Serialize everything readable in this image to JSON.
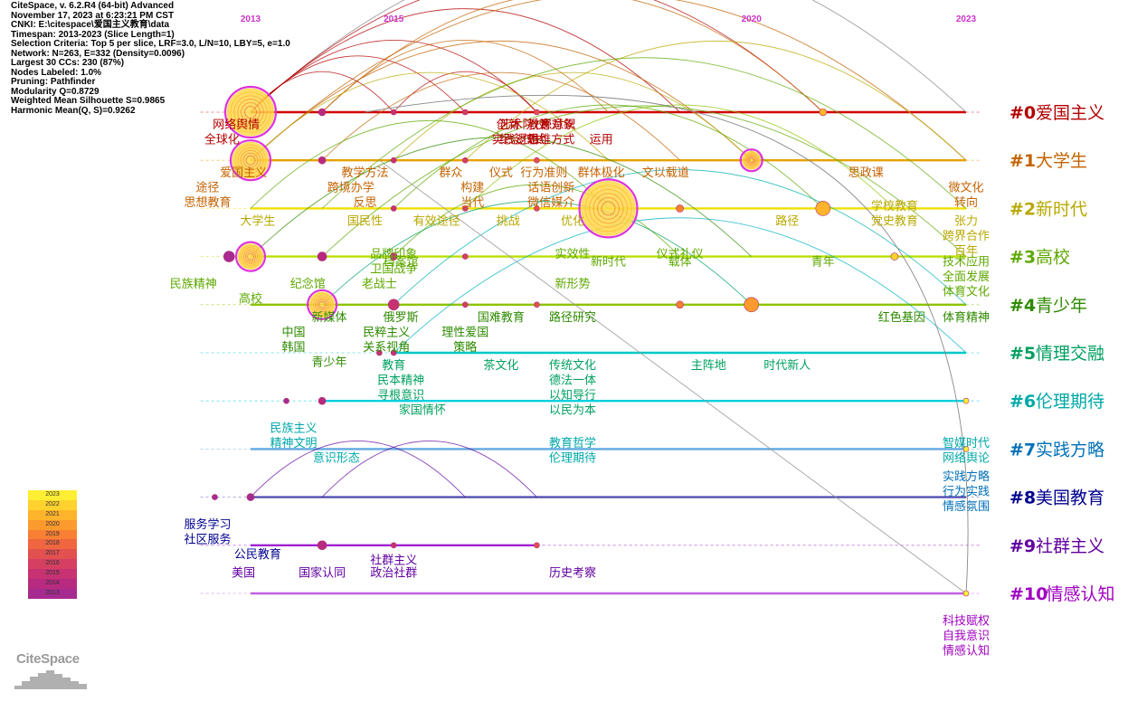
{
  "meta": {
    "lines": [
      "CiteSpace, v. 6.2.R4 (64-bit) Advanced",
      "November 17, 2023 at 6:23:21 PM CST",
      "CNKI: E:\\citespace\\爱国主义教育\\data",
      "Timespan: 2013-2023 (Slice Length=1)",
      "Selection Criteria: Top 5 per slice, LRF=3.0, L/N=10, LBY=5, e=1.0",
      "Network: N=263, E=332 (Density=0.0096)",
      "Largest 30 CCs: 230 (87%)",
      "Nodes Labeled: 1.0%",
      "Pruning: Pathfinder",
      "Modularity Q=0.8729",
      "Weighted Mean Silhouette S=0.9865",
      "Harmonic Mean(Q, S)=0.9262"
    ]
  },
  "timeline": {
    "years": [
      {
        "label": "2013",
        "year": 2013
      },
      {
        "label": "2015",
        "year": 2015
      },
      {
        "label": "2020",
        "year": 2020
      },
      {
        "label": "2023",
        "year": 2023
      }
    ],
    "clusters": [
      {
        "id": "#0",
        "name": "爱国主义",
        "color": "#b30000",
        "line_color": "#d00000",
        "start": 2013,
        "end": 2023,
        "nodes": [
          {
            "year": 2013,
            "size": 26
          },
          {
            "year": 2014,
            "size": 4
          },
          {
            "year": 2015,
            "size": 3
          },
          {
            "year": 2016,
            "size": 3
          },
          {
            "year": 2017,
            "size": 3
          },
          {
            "year": 2021,
            "size": 4
          }
        ],
        "keywords": [
          {
            "text": "网络舆情",
            "year": 2012.8,
            "row": 0
          },
          {
            "text": "全球化",
            "year": 2012.6,
            "row": 1
          },
          {
            "text": "创新",
            "year": 2016.6,
            "row": 0
          },
          {
            "text": "患意识",
            "year": 2017.3,
            "row": 0
          },
          {
            "text": "实践逻辑",
            "year": 2016.7,
            "row": 1
          },
          {
            "text": "运用",
            "year": 2017.9,
            "row": 1
          },
          {
            "text": "艺术院校",
            "year": 2016.8,
            "row": 0
          },
          {
            "text": "纪念仪式",
            "year": 2016.8,
            "row": 1
          },
          {
            "text": "教育对象",
            "year": 2017.2,
            "row": 0
          },
          {
            "text": "思维方式",
            "year": 2017.2,
            "row": 1
          }
        ]
      },
      {
        "id": "#1",
        "name": "大学生",
        "color": "#c46200",
        "line_color": "#e6a200",
        "start": 2013,
        "end": 2023,
        "nodes": [
          {
            "year": 2013,
            "size": 20
          },
          {
            "year": 2014,
            "size": 4
          },
          {
            "year": 2015,
            "size": 3
          },
          {
            "year": 2016,
            "size": 3
          },
          {
            "year": 2017,
            "size": 3
          },
          {
            "year": 2020,
            "size": 10
          }
        ],
        "keywords": [
          {
            "text": "爱国主义",
            "year": 2012.9,
            "row": 0
          },
          {
            "text": "教学方法",
            "year": 2014.6,
            "row": 0
          },
          {
            "text": "群众",
            "year": 2015.8,
            "row": 0
          },
          {
            "text": "仪式",
            "year": 2016.5,
            "row": 0
          },
          {
            "text": "行为准则",
            "year": 2017.1,
            "row": 0
          },
          {
            "text": "群体极化",
            "year": 2017.9,
            "row": 0
          },
          {
            "text": "文以载道",
            "year": 2018.8,
            "row": 0
          },
          {
            "text": "思政课",
            "year": 2021.6,
            "row": 0
          },
          {
            "text": "途径",
            "year": 2012.4,
            "row": 1
          },
          {
            "text": "思想教育",
            "year": 2012.4,
            "row": 2
          },
          {
            "text": "跨境办学",
            "year": 2014.4,
            "row": 1
          },
          {
            "text": "反思",
            "year": 2014.6,
            "row": 2
          },
          {
            "text": "构建",
            "year": 2016.1,
            "row": 1
          },
          {
            "text": "当代",
            "year": 2016.1,
            "row": 2
          },
          {
            "text": "话语创新",
            "year": 2017.2,
            "row": 1
          },
          {
            "text": "微信媒介",
            "year": 2017.2,
            "row": 2
          },
          {
            "text": "微文化",
            "year": 2023,
            "row": 1
          },
          {
            "text": "转向",
            "year": 2023,
            "row": 2
          }
        ]
      },
      {
        "id": "#2",
        "name": "新时代",
        "color": "#b8a800",
        "line_color": "#f0e000",
        "start": 2013,
        "end": 2023,
        "nodes": [
          {
            "year": 2015,
            "size": 3
          },
          {
            "year": 2016,
            "size": 3
          },
          {
            "year": 2017,
            "size": 3
          },
          {
            "year": 2018,
            "size": 30
          },
          {
            "year": 2019,
            "size": 4
          },
          {
            "year": 2021,
            "size": 8
          }
        ],
        "keywords": [
          {
            "text": "大学生",
            "year": 2013.1,
            "row": 0
          },
          {
            "text": "国民性",
            "year": 2014.6,
            "row": 0
          },
          {
            "text": "有效途径",
            "year": 2015.6,
            "row": 0
          },
          {
            "text": "挑战",
            "year": 2016.6,
            "row": 0
          },
          {
            "text": "优化",
            "year": 2017.5,
            "row": 0
          },
          {
            "text": "路径",
            "year": 2020.5,
            "row": 0
          },
          {
            "text": "学校教育",
            "year": 2022,
            "row": -1
          },
          {
            "text": "党史教育",
            "year": 2022,
            "row": 0
          },
          {
            "text": "张力",
            "year": 2023,
            "row": 0
          },
          {
            "text": "跨界合作",
            "year": 2023,
            "row": 1
          },
          {
            "text": "百年",
            "year": 2023,
            "row": 2
          }
        ]
      },
      {
        "id": "#3",
        "name": "高校",
        "color": "#5ea800",
        "line_color": "#b8e000",
        "start": 2013,
        "end": 2023,
        "nodes": [
          {
            "year": 2012.7,
            "size": 6
          },
          {
            "year": 2013,
            "size": 14
          },
          {
            "year": 2014,
            "size": 5
          },
          {
            "year": 2015,
            "size": 4
          },
          {
            "year": 2016,
            "size": 3
          },
          {
            "year": 2022,
            "size": 4
          }
        ],
        "keywords": [
          {
            "text": "品牌印象",
            "year": 2015,
            "row": -1
          },
          {
            "text": "档案馆",
            "year": 2015.1,
            "row": -0.5
          },
          {
            "text": "实效性",
            "year": 2017.5,
            "row": -1
          },
          {
            "text": "新时代",
            "year": 2018,
            "row": -0.5
          },
          {
            "text": "仪式礼仪",
            "year": 2019,
            "row": -1
          },
          {
            "text": "载体",
            "year": 2019,
            "row": -0.5
          },
          {
            "text": "青年",
            "year": 2021,
            "row": -0.5
          },
          {
            "text": "技术应用",
            "year": 2023,
            "row": -0.5
          },
          {
            "text": "民族精神",
            "year": 2012.2,
            "row": 1
          },
          {
            "text": "纪念馆",
            "year": 2013.8,
            "row": 1
          },
          {
            "text": "高校",
            "year": 2013,
            "row": 2
          },
          {
            "text": "卫国战争",
            "year": 2015,
            "row": 0
          },
          {
            "text": "老战士",
            "year": 2014.8,
            "row": 1
          },
          {
            "text": "新形势",
            "year": 2017.5,
            "row": 1
          },
          {
            "text": "全面发展",
            "year": 2023,
            "row": 0.5
          },
          {
            "text": "体育文化",
            "year": 2023,
            "row": 1.5
          }
        ]
      },
      {
        "id": "#4",
        "name": "青少年",
        "color": "#2e8a00",
        "line_color": "#8cc300",
        "start": 2013,
        "end": 2023,
        "nodes": [
          {
            "year": 2014,
            "size": 14
          },
          {
            "year": 2015,
            "size": 6
          },
          {
            "year": 2016,
            "size": 3
          },
          {
            "year": 2017,
            "size": 3
          },
          {
            "year": 2019,
            "size": 4
          },
          {
            "year": 2020,
            "size": 8
          }
        ],
        "keywords": [
          {
            "text": "新媒体",
            "year": 2014.1,
            "row": 0
          },
          {
            "text": "俄罗斯",
            "year": 2015.1,
            "row": 0
          },
          {
            "text": "国难教育",
            "year": 2016.5,
            "row": 0
          },
          {
            "text": "路径研究",
            "year": 2017.5,
            "row": 0
          },
          {
            "text": "红色基因",
            "year": 2022.1,
            "row": 0
          },
          {
            "text": "体育精神",
            "year": 2023,
            "row": 0
          },
          {
            "text": "中国",
            "year": 2013.6,
            "row": 1
          },
          {
            "text": "韩国",
            "year": 2013.6,
            "row": 2
          },
          {
            "text": "民粹主义",
            "year": 2014.9,
            "row": 1
          },
          {
            "text": "关系视角",
            "year": 2014.9,
            "row": 2
          },
          {
            "text": "理性爱国",
            "year": 2016,
            "row": 1
          },
          {
            "text": "策略",
            "year": 2016,
            "row": 2
          },
          {
            "text": "青少年",
            "year": 2014.1,
            "row": 3
          }
        ]
      },
      {
        "id": "#5",
        "name": "情理交融",
        "color": "#00a060",
        "line_color": "#00c8c8",
        "start": 2015,
        "end": 2023,
        "nodes": [
          {
            "year": 2014.8,
            "size": 3
          },
          {
            "year": 2015,
            "size": 3
          }
        ],
        "keywords": [
          {
            "text": "教育",
            "year": 2015,
            "row": 0
          },
          {
            "text": "茶文化",
            "year": 2016.5,
            "row": 0
          },
          {
            "text": "传统文化",
            "year": 2017.5,
            "row": 0
          },
          {
            "text": "主阵地",
            "year": 2019.4,
            "row": 0
          },
          {
            "text": "时代新人",
            "year": 2020.5,
            "row": 0
          },
          {
            "text": "民本精神",
            "year": 2015.1,
            "row": 1
          },
          {
            "text": "寻根意识",
            "year": 2015.1,
            "row": 2
          },
          {
            "text": "德法一体",
            "year": 2017.5,
            "row": 1
          },
          {
            "text": "以知导行",
            "year": 2017.5,
            "row": 2
          },
          {
            "text": "以民为本",
            "year": 2017.5,
            "row": 3
          },
          {
            "text": "家国情怀",
            "year": 2015.4,
            "row": 3
          }
        ]
      },
      {
        "id": "#6",
        "name": "伦理期待",
        "color": "#00a8a8",
        "line_color": "#00d0e0",
        "start": 2014,
        "end": 2023,
        "nodes": [
          {
            "year": 2013.5,
            "size": 3
          },
          {
            "year": 2014,
            "size": 4
          },
          {
            "year": 2023,
            "size": 3
          }
        ],
        "keywords": [
          {
            "text": "民族主义",
            "year": 2013.6,
            "row": 1
          },
          {
            "text": "精神文明",
            "year": 2013.6,
            "row": 2
          },
          {
            "text": "意识形态",
            "year": 2014.2,
            "row": 3
          },
          {
            "text": "教育哲学",
            "year": 2017.5,
            "row": 2
          },
          {
            "text": "伦理期待",
            "year": 2017.5,
            "row": 3
          },
          {
            "text": "智媒时代",
            "year": 2023,
            "row": 2
          },
          {
            "text": "网络舆论",
            "year": 2023,
            "row": 3
          }
        ]
      },
      {
        "id": "#7",
        "name": "实践方略",
        "color": "#0070b8",
        "line_color": "#60a8e0",
        "start": 2013,
        "end": 2023,
        "nodes": [
          {
            "year": 2023,
            "size": 3
          }
        ],
        "keywords": [
          {
            "text": "实践方略",
            "year": 2023,
            "row": 1
          },
          {
            "text": "行为实践",
            "year": 2023,
            "row": 2
          },
          {
            "text": "情感氛围",
            "year": 2023,
            "row": 3
          }
        ]
      },
      {
        "id": "#8",
        "name": "美国教育",
        "color": "#000090",
        "line_color": "#5050b0",
        "start": 2013,
        "end": 2023,
        "nodes": [
          {
            "year": 2012.5,
            "size": 3
          },
          {
            "year": 2013,
            "size": 4
          }
        ],
        "keywords": [
          {
            "text": "服务学习",
            "year": 2012.4,
            "row": 1
          },
          {
            "text": "社区服务",
            "year": 2012.4,
            "row": 2
          },
          {
            "text": "公民教育",
            "year": 2013.1,
            "row": 3
          }
        ]
      },
      {
        "id": "#9",
        "name": "社群主义",
        "color": "#6000a0",
        "line_color": "#a020d0",
        "start": 2013,
        "end": 2017,
        "nodes": [
          {
            "year": 2014,
            "size": 5
          },
          {
            "year": 2015,
            "size": 3
          },
          {
            "year": 2017,
            "size": 3
          }
        ],
        "keywords": [
          {
            "text": "美国",
            "year": 2012.9,
            "row": 1
          },
          {
            "text": "国家认同",
            "year": 2014,
            "row": 1
          },
          {
            "text": "社群主义",
            "year": 2015,
            "row": 0.15
          },
          {
            "text": "政治社群",
            "year": 2015,
            "row": 1
          },
          {
            "text": "历史考察",
            "year": 2017.5,
            "row": 1
          }
        ]
      },
      {
        "id": "#10",
        "name": "情感认知",
        "color": "#a000c0",
        "line_color": "#c060e0",
        "start": 2013,
        "end": 2023,
        "nodes": [
          {
            "year": 2023,
            "size": 3
          }
        ],
        "keywords": [
          {
            "text": "科技赋权",
            "year": 2023,
            "row": 1
          },
          {
            "text": "自我意识",
            "year": 2023,
            "row": 2
          },
          {
            "text": "情感认知",
            "year": 2023,
            "row": 3
          }
        ]
      }
    ]
  },
  "legend": {
    "years": [
      "2023",
      "2022",
      "2021",
      "2020",
      "2019",
      "2018",
      "2017",
      "2016",
      "2015",
      "2014",
      "2013"
    ],
    "colors": [
      "#ffee33",
      "#ffd22e",
      "#ffb42b",
      "#fd9a2d",
      "#f87f33",
      "#ef6640",
      "#e25050",
      "#d43f62",
      "#c63272",
      "#b82a80",
      "#a62a90"
    ]
  },
  "logo": {
    "text": "CiteSpace"
  }
}
